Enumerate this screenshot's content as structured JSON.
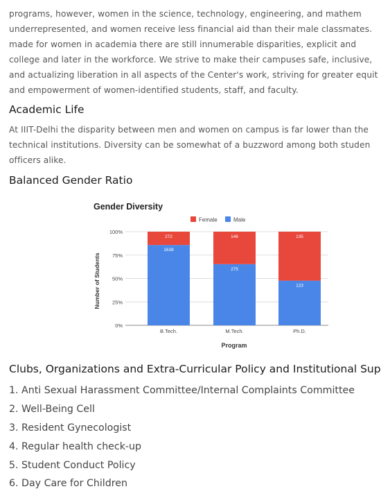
{
  "intro": {
    "lines": [
      "programs, however, women in the science, technology, engineering, and mathem",
      "underrepresented, and women receive less financial aid than their male classmates.",
      "made for women in academia there are still innumerable disparities, explicit and",
      "college and later in the workforce. We strive to make their campuses safe, inclusive,",
      "and actualizing liberation in all aspects of the Center's work, striving for greater equit",
      "and empowerment of women-identified students, staff, and faculty."
    ]
  },
  "academic": {
    "heading": "Academic Life",
    "lines": [
      "At IIIT-Delhi the disparity between men and women on campus is far lower than the",
      "technical institutions. Diversity can be somewhat of a buzzword among both studen",
      "officers alike."
    ]
  },
  "gender": {
    "heading": "Balanced Gender Ratio"
  },
  "chart_data": {
    "type": "bar",
    "stacked": true,
    "percent": true,
    "title": "Gender Diversity",
    "xlabel": "Program",
    "ylabel": "Number of Students",
    "categories": [
      "B.Tech.",
      "M.Tech.",
      "Ph.D."
    ],
    "series": [
      {
        "name": "Male",
        "color": "#4a86e8",
        "values": [
          1638,
          275,
          123
        ]
      },
      {
        "name": "Female",
        "color": "#e8473c",
        "values": [
          272,
          146,
          135
        ]
      }
    ],
    "yticks": [
      "0%",
      "25%",
      "50%",
      "75%",
      "100%"
    ],
    "legend": "top"
  },
  "clubs": {
    "heading": "Clubs, Organizations and Extra-Curricular Policy and Institutional Sup",
    "items": [
      "1. Anti Sexual Harassment Committee/Internal Complaints Committee",
      "2. Well-Being Cell",
      "3. Resident Gynecologist",
      "4. Regular health check-up",
      "5. Student Conduct Policy",
      "6. Day Care for Children"
    ]
  }
}
